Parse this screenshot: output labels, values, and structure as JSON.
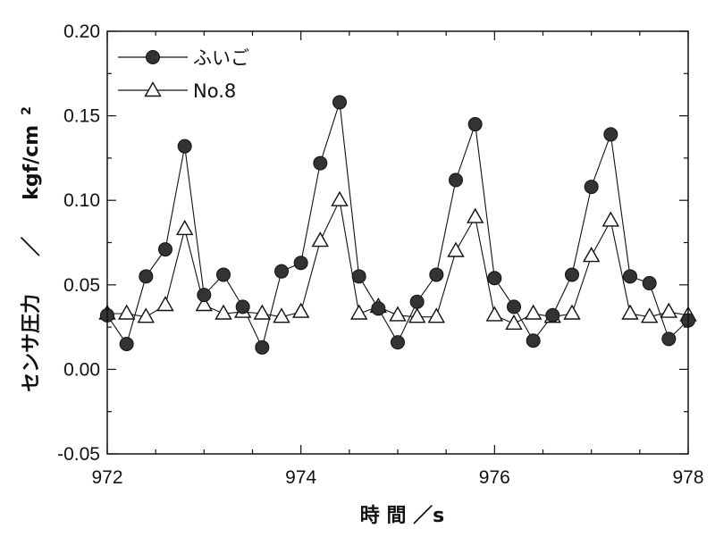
{
  "chart_data": {
    "type": "line",
    "xlabel": "時 間 ／s",
    "ylabel_main": "センサ圧力",
    "ylabel_sep": "／",
    "ylabel_unit": "kgf/cm",
    "ylabel_unit_sup": "2",
    "xlim": [
      972,
      978
    ],
    "ylim": [
      -0.05,
      0.2
    ],
    "xticks": [
      972,
      974,
      976,
      978
    ],
    "xtick_labels": [
      "972",
      "974",
      "976",
      "978"
    ],
    "yticks": [
      -0.05,
      0.0,
      0.05,
      0.1,
      0.15,
      0.2
    ],
    "ytick_labels": [
      "-0.05",
      "0.00",
      "0.05",
      "0.10",
      "0.15",
      "0.20"
    ],
    "grid": false,
    "legend_position": "top-left",
    "series": [
      {
        "name": "ふいご",
        "marker": "filled-circle",
        "x": [
          972.0,
          972.2,
          972.4,
          972.6,
          972.8,
          973.0,
          973.2,
          973.4,
          973.6,
          973.8,
          974.0,
          974.2,
          974.4,
          974.6,
          974.8,
          975.0,
          975.2,
          975.4,
          975.6,
          975.8,
          976.0,
          976.2,
          976.4,
          976.6,
          976.8,
          977.0,
          977.2,
          977.4,
          977.6,
          977.8,
          978.0
        ],
        "y": [
          0.032,
          0.015,
          0.055,
          0.071,
          0.132,
          0.044,
          0.056,
          0.037,
          0.013,
          0.058,
          0.063,
          0.122,
          0.158,
          0.055,
          0.036,
          0.016,
          0.04,
          0.056,
          0.112,
          0.145,
          0.054,
          0.037,
          0.017,
          0.032,
          0.056,
          0.108,
          0.139,
          0.055,
          0.051,
          0.018,
          0.029
        ]
      },
      {
        "name": "No.8",
        "marker": "open-triangle",
        "x": [
          972.0,
          972.2,
          972.4,
          972.6,
          972.8,
          973.0,
          973.2,
          973.4,
          973.6,
          973.8,
          974.0,
          974.2,
          974.4,
          974.6,
          974.8,
          975.0,
          975.2,
          975.4,
          975.6,
          975.8,
          976.0,
          976.2,
          976.4,
          976.6,
          976.8,
          977.0,
          977.2,
          977.4,
          977.6,
          977.8,
          978.0
        ],
        "y": [
          0.033,
          0.033,
          0.031,
          0.038,
          0.083,
          0.038,
          0.033,
          0.034,
          0.033,
          0.031,
          0.034,
          0.076,
          0.1,
          0.033,
          0.037,
          0.032,
          0.031,
          0.031,
          0.07,
          0.09,
          0.032,
          0.027,
          0.033,
          0.031,
          0.033,
          0.067,
          0.088,
          0.033,
          0.031,
          0.034,
          0.032
        ]
      }
    ]
  }
}
